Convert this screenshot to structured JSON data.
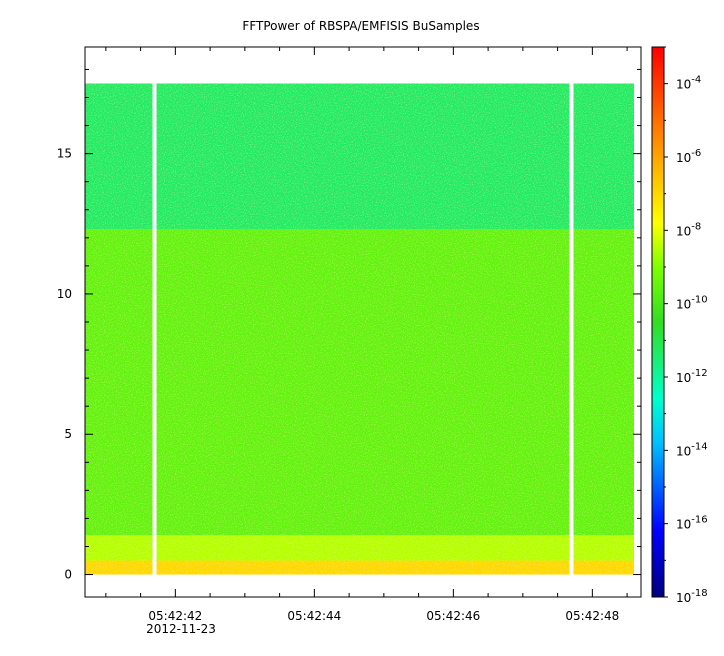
{
  "chart_data": {
    "type": "heatmap",
    "title": "FFTPower of RBSPA/EMFISIS  BuSamples",
    "xlabel": "",
    "ylabel": "",
    "x_date_label": "2012-11-23",
    "xlim": [
      "05:42:40.7",
      "05:42:48.7"
    ],
    "ylim": [
      -0.8,
      18.8
    ],
    "x_ticks": [
      "05:42:42",
      "05:42:44",
      "05:42:46",
      "05:42:48"
    ],
    "y_ticks": [
      0,
      5,
      10,
      15
    ],
    "colorbar": {
      "scale": "log",
      "range": [
        1e-18,
        0.001
      ],
      "tick_labels": [
        "10^-4",
        "10^-6",
        "10^-8",
        "10^-10",
        "10^-12",
        "10^-14",
        "10^-16",
        "10^-18"
      ],
      "tick_values": [
        -4,
        -6,
        -8,
        -10,
        -12,
        -14,
        -16,
        -18
      ]
    },
    "data_gaps": [
      "05:42:41.7",
      "05:42:47.7"
    ],
    "bands": [
      {
        "f_min": 0.0,
        "f_max": 0.5,
        "log_power": -7.0
      },
      {
        "f_min": 0.5,
        "f_max": 1.4,
        "log_power": -8.5
      },
      {
        "f_min": 1.4,
        "f_max": 12.3,
        "log_power": -9.6
      },
      {
        "f_min": 12.3,
        "f_max": 17.5,
        "log_power": -11.3
      }
    ],
    "grid": false
  }
}
